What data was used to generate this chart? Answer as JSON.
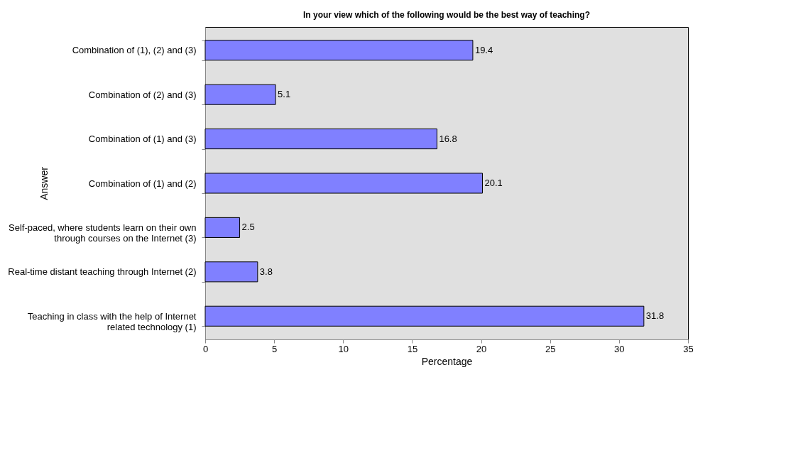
{
  "chart_data": {
    "type": "bar",
    "orientation": "horizontal",
    "title": "In your view which of the following would be the best way of teaching?",
    "xlabel": "Percentage",
    "ylabel": "Answer",
    "categories": [
      "Combination of (1), (2) and (3)",
      "Combination of (2) and (3)",
      "Combination of (1) and (3)",
      "Combination of (1) and (2)",
      "Self-paced, where students learn on their own through courses on the Internet (3)",
      "Real-time distant teaching through Internet (2)",
      "Teaching in class with the help of Internet related technology (1)"
    ],
    "values": [
      19.4,
      5.1,
      16.8,
      20.1,
      2.5,
      3.8,
      31.8
    ],
    "color": "#8080ff",
    "data_labels": true,
    "xlim": [
      0,
      35
    ],
    "xticks": [
      0,
      5,
      10,
      15,
      20,
      25,
      30,
      35
    ],
    "grid": false
  }
}
